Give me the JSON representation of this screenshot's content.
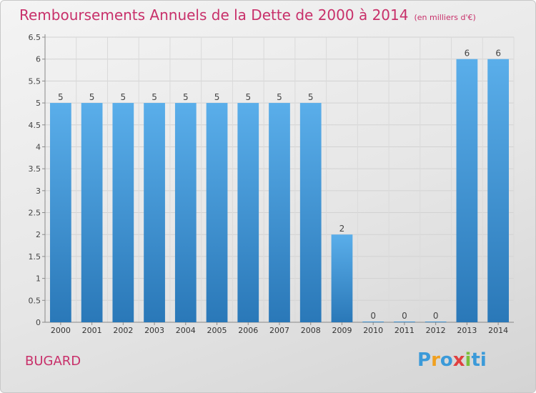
{
  "header": {
    "title": "Remboursements Annuels de la Dette de 2000 à 2014",
    "unit": "(en milliers d'€)"
  },
  "footer": {
    "commune": "BUGARD",
    "logo_letters": [
      "P",
      "r",
      "o",
      "x",
      "i",
      "ti"
    ]
  },
  "colors": {
    "title": "#c8306a",
    "bar_top": "#5aaeea",
    "bar_bottom": "#2a78b8"
  },
  "chart_data": {
    "type": "bar",
    "title": "Remboursements Annuels de la Dette de 2000 à 2014",
    "categories": [
      "2000",
      "2001",
      "2002",
      "2003",
      "2004",
      "2005",
      "2006",
      "2007",
      "2008",
      "2009",
      "2010",
      "2011",
      "2012",
      "2013",
      "2014"
    ],
    "values": [
      5,
      5,
      5,
      5,
      5,
      5,
      5,
      5,
      5,
      2,
      0,
      0,
      0,
      6,
      6
    ],
    "value_labels": [
      "5",
      "5",
      "5",
      "5",
      "5",
      "5",
      "5",
      "5",
      "5",
      "2",
      "0",
      "0",
      "0",
      "6",
      "6"
    ],
    "yticks": [
      "0",
      "0.5",
      "1",
      "1.5",
      "2",
      "2.5",
      "3",
      "3.5",
      "4",
      "4.5",
      "5",
      "5.5",
      "6",
      "6.5"
    ],
    "ylim": [
      0,
      6.5
    ],
    "grid": true,
    "legend": "none"
  }
}
